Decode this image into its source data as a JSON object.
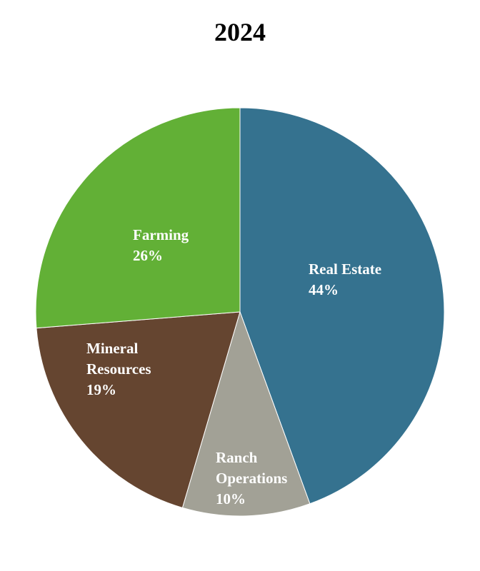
{
  "chart_data": {
    "type": "pie",
    "title": "2024",
    "start_angle_deg": 0,
    "direction": "clockwise",
    "legend": "none",
    "slices": [
      {
        "label_lines": [
          "Real Estate"
        ],
        "value": 44,
        "value_label": "44%",
        "color": "#35728f"
      },
      {
        "label_lines": [
          "Ranch",
          "Operations"
        ],
        "value": 10,
        "value_label": "10%",
        "color": "#a2a196"
      },
      {
        "label_lines": [
          "Mineral",
          "Resources"
        ],
        "value": 19,
        "value_label": "19%",
        "color": "#654530"
      },
      {
        "label_lines": [
          "Farming"
        ],
        "value": 26,
        "value_label": "26%",
        "color": "#62b036"
      }
    ]
  }
}
